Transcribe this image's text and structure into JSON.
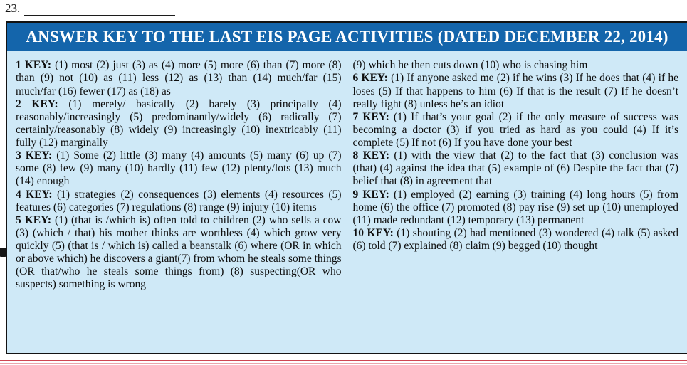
{
  "page": {
    "question_label": "23.",
    "header_title": "ANSWER KEY TO THE LAST EIS PAGE ACTIVITIES (DATED DECEMBER 22, 2014)"
  },
  "colors": {
    "header_bg": "#1465ab",
    "body_bg": "#cfe9f7",
    "rule_red": "#cf4653"
  },
  "answer_key": {
    "left": [
      {
        "label": "1 KEY:",
        "text": " (1) most (2) just (3) as (4) more (5) more (6) than (7) more (8) than  (9) not (10) as (11) less (12) as (13) than (14) much/far (15) much/far (16) fewer (17) as (18) as"
      },
      {
        "label": "2 KEY:",
        "text": " (1) merely/ basically (2) barely (3) principally (4) reasonably/increasingly (5) predominantly/widely (6) radically (7) certainly/reasonably (8) widely  (9) increasingly (10) inextricably (11) fully (12) marginally"
      },
      {
        "label": "3 KEY:",
        "text": " (1) Some (2) little (3) many (4) amounts (5) many (6) up (7) some (8) few  (9) many (10) hardly (11) few (12) plenty/lots (13) much (14) enough"
      },
      {
        "label": "4 KEY:",
        "text": " (1) strategies (2) consequences (3) elements (4) resources (5) features (6) categories (7) regulations (8) range  (9) injury (10) items"
      },
      {
        "label": "5 KEY:",
        "text": " (1) (that is /which is) often told to children (2) who sells a cow (3) (which / that) his mother thinks are worthless (4) which grow very quickly (5) (that is / which is) called a beanstalk (6) where (OR in which or above which) he discovers a giant(7) from whom he steals some things (OR that/who he steals some things from) (8) suspecting(OR who suspects) something is wrong"
      }
    ],
    "right": [
      {
        "label": "",
        "text": "(9) which he then cuts down (10) who is chasing him"
      },
      {
        "label": "6 KEY:",
        "text": " (1) If anyone asked me (2) if he wins (3) If he does that (4) if he loses (5) If that happens to him (6) If that is the result (7) If he doesn’t really fight (8) unless he’s an idiot"
      },
      {
        "label": "7 KEY:",
        "text": " (1) If that’s your goal (2) if the only measure of success was becoming a doctor (3) if you tried as hard as you could (4) If it’s complete (5) If not (6) If you have done your best"
      },
      {
        "label": "8 KEY:",
        "text": " (1) with the view that (2) to the fact that (3) conclusion was (that) (4) against the idea that (5) example of (6) Despite the fact that (7) belief that (8) in agreement that"
      },
      {
        "label": "9 KEY:",
        "text": " (1) employed (2) earning (3) training (4) long hours (5) from home (6) the office (7) promoted (8) pay rise  (9) set up (10) unemployed (11) made redundant (12) temporary (13) permanent"
      },
      {
        "label": "10 KEY:",
        "text": " (1) shouting (2) had mentioned (3) wondered (4) talk (5) asked (6) told (7) explained (8) claim  (9) begged (10) thought"
      }
    ]
  }
}
